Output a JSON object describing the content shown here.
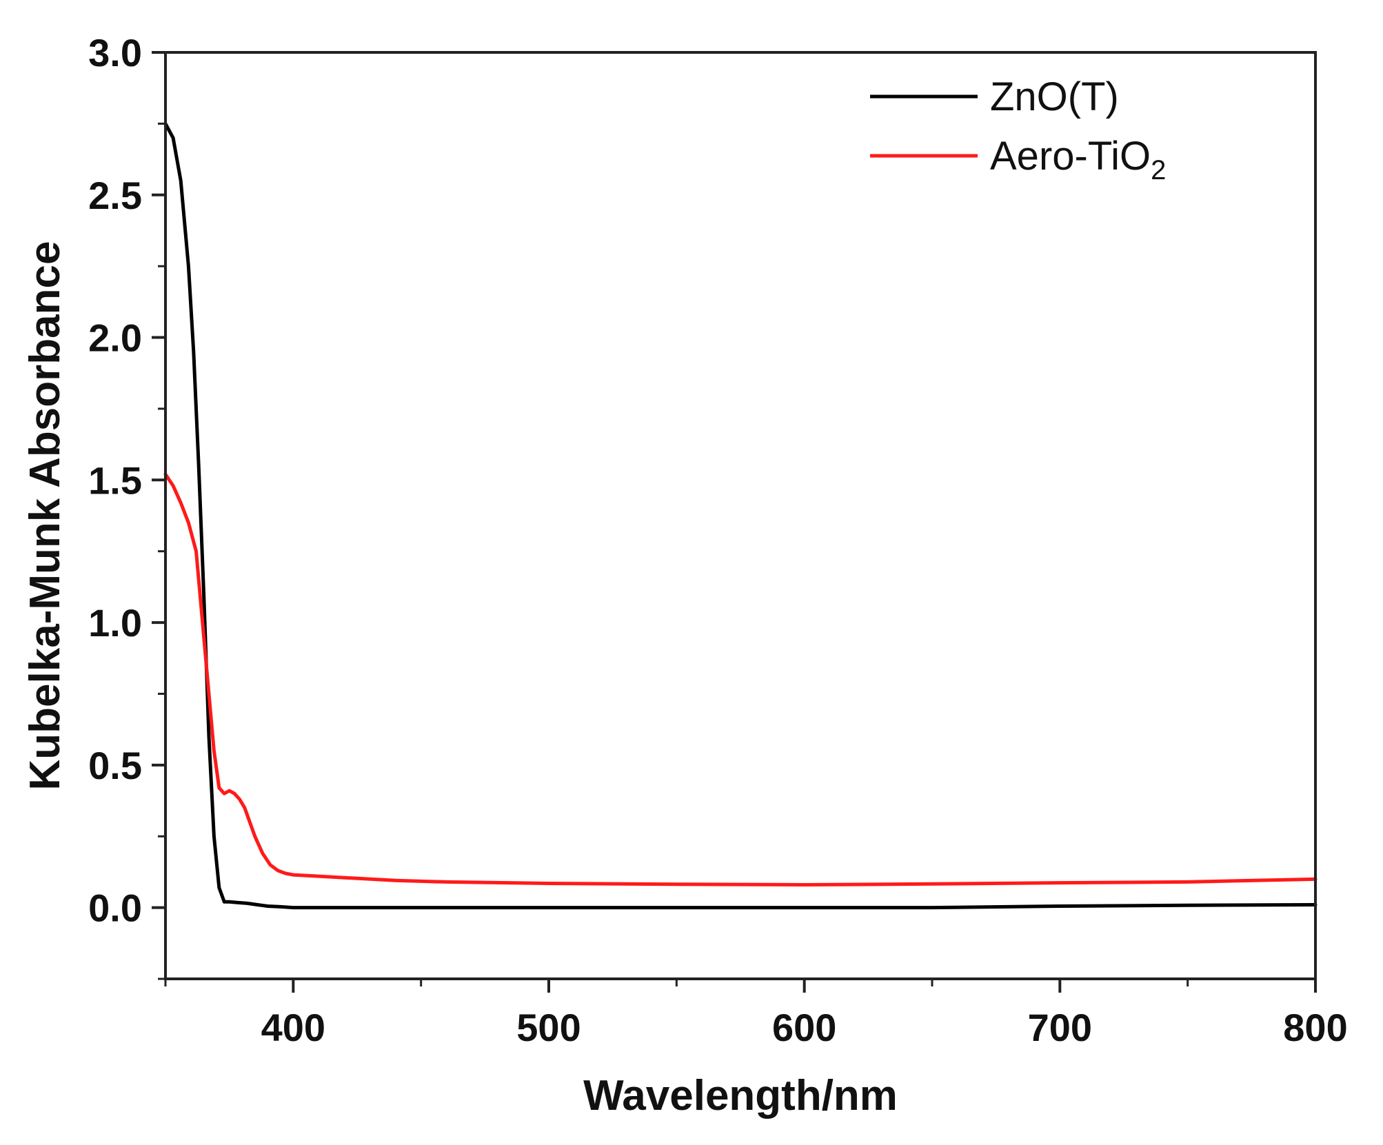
{
  "chart_data": {
    "type": "line",
    "title": "",
    "xlabel": "Wavelength/nm",
    "ylabel": "Kubelka-Munk Absorbance",
    "xlim": [
      350,
      800
    ],
    "ylim": [
      -0.25,
      3.0
    ],
    "xticks": [
      400,
      500,
      600,
      700,
      800
    ],
    "xtick_labels": [
      "400",
      "500",
      "600",
      "700",
      "800"
    ],
    "yticks": [
      0.0,
      0.5,
      1.0,
      1.5,
      2.0,
      2.5,
      3.0
    ],
    "ytick_labels": [
      "0.0",
      "0.5",
      "1.0",
      "1.5",
      "2.0",
      "2.5",
      "3.0"
    ],
    "grid": false,
    "legend_position": "top-right",
    "series": [
      {
        "name": "ZnO(T)",
        "color": "#000000",
        "x": [
          350,
          353,
          356,
          359,
          361,
          363,
          365,
          367,
          369,
          371,
          373,
          375,
          378,
          382,
          386,
          390,
          395,
          400,
          420,
          450,
          500,
          550,
          600,
          650,
          700,
          750,
          800
        ],
        "y": [
          2.75,
          2.7,
          2.55,
          2.25,
          1.95,
          1.55,
          1.1,
          0.6,
          0.25,
          0.07,
          0.02,
          0.02,
          0.018,
          0.015,
          0.01,
          0.005,
          0.003,
          0.0,
          0.0,
          0.0,
          0.0,
          0.0,
          0.0,
          0.0,
          0.005,
          0.008,
          0.01
        ]
      },
      {
        "name": "Aero-TiO",
        "name_subscript": "2",
        "color": "#ff1a1a",
        "x": [
          350,
          353,
          356,
          359,
          362,
          363,
          365,
          367,
          369,
          371,
          373,
          375,
          377,
          379,
          381,
          383,
          385,
          388,
          391,
          394,
          397,
          400,
          410,
          420,
          440,
          460,
          500,
          550,
          600,
          650,
          700,
          750,
          800
        ],
        "y": [
          1.52,
          1.48,
          1.42,
          1.35,
          1.25,
          1.15,
          0.95,
          0.75,
          0.55,
          0.42,
          0.4,
          0.41,
          0.4,
          0.38,
          0.35,
          0.3,
          0.25,
          0.19,
          0.15,
          0.13,
          0.12,
          0.115,
          0.11,
          0.105,
          0.095,
          0.09,
          0.085,
          0.082,
          0.08,
          0.083,
          0.087,
          0.09,
          0.1
        ]
      }
    ]
  }
}
